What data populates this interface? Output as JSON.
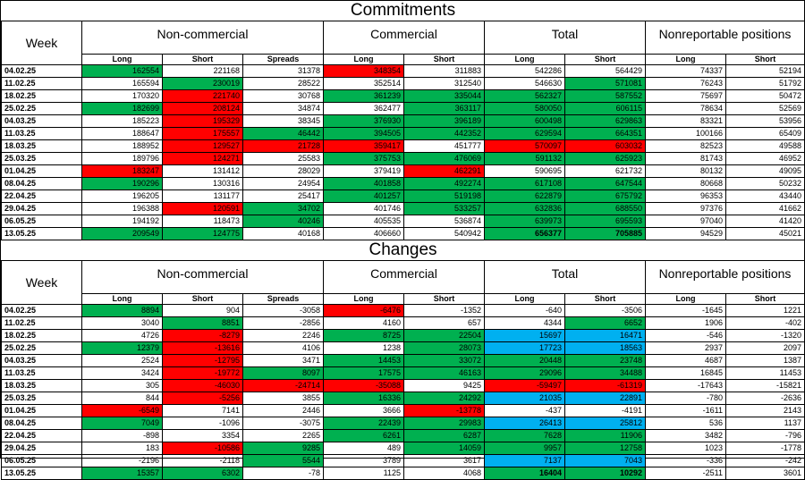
{
  "section_titles": {
    "commitments": "Commitments",
    "changes": "Changes"
  },
  "headers": {
    "week": "Week",
    "groups": [
      "Non-commercial",
      "Commercial",
      "Total",
      "Nonreportable positions"
    ],
    "subs": [
      "Long",
      "Short",
      "Spreads",
      "Long",
      "Short",
      "Long",
      "Short",
      "Long",
      "Short"
    ]
  },
  "colors": {
    "green": "#00b050",
    "red": "#ff0000",
    "blue": "#00b0f0"
  },
  "commitments": [
    {
      "week": "04.02.25",
      "v": [
        "162554",
        "221168",
        "31378",
        "348354",
        "311883",
        "542286",
        "564429",
        "74337",
        "52194"
      ],
      "c": [
        "g",
        "",
        "",
        "r",
        "",
        "",
        "",
        "",
        ""
      ]
    },
    {
      "week": "11.02.25",
      "v": [
        "165594",
        "230019",
        "28522",
        "352514",
        "312540",
        "546630",
        "571081",
        "76243",
        "51792"
      ],
      "c": [
        "",
        "g",
        "",
        "",
        "",
        "",
        "g",
        "",
        ""
      ]
    },
    {
      "week": "18.02.25",
      "v": [
        "170320",
        "221740",
        "30768",
        "361239",
        "335044",
        "562327",
        "587552",
        "75697",
        "50472"
      ],
      "c": [
        "",
        "r",
        "",
        "g",
        "g",
        "g",
        "g",
        "",
        ""
      ]
    },
    {
      "week": "25.02.25",
      "v": [
        "182699",
        "208124",
        "34874",
        "362477",
        "363117",
        "580050",
        "606115",
        "78634",
        "52569"
      ],
      "c": [
        "g",
        "r",
        "",
        "",
        "g",
        "g",
        "g",
        "",
        ""
      ]
    },
    {
      "week": "04.03.25",
      "v": [
        "185223",
        "195329",
        "38345",
        "376930",
        "396189",
        "600498",
        "629863",
        "83321",
        "53956"
      ],
      "c": [
        "",
        "r",
        "",
        "g",
        "g",
        "g",
        "g",
        "",
        ""
      ]
    },
    {
      "week": "11.03.25",
      "v": [
        "188647",
        "175557",
        "46442",
        "394505",
        "442352",
        "629594",
        "664351",
        "100166",
        "65409"
      ],
      "c": [
        "",
        "r",
        "g",
        "g",
        "g",
        "g",
        "g",
        "",
        ""
      ]
    },
    {
      "week": "18.03.25",
      "v": [
        "188952",
        "129527",
        "21728",
        "359417",
        "451777",
        "570097",
        "603032",
        "82523",
        "49588"
      ],
      "c": [
        "",
        "r",
        "r",
        "r",
        "",
        "r",
        "r",
        "",
        ""
      ]
    },
    {
      "week": "25.03.25",
      "v": [
        "189796",
        "124271",
        "25583",
        "375753",
        "476069",
        "591132",
        "625923",
        "81743",
        "46952"
      ],
      "c": [
        "",
        "r",
        "",
        "g",
        "g",
        "g",
        "g",
        "",
        ""
      ]
    },
    {
      "week": "01.04.25",
      "v": [
        "183247",
        "131412",
        "28029",
        "379419",
        "462291",
        "590695",
        "621732",
        "80132",
        "49095"
      ],
      "c": [
        "r",
        "",
        "",
        "",
        "r",
        "",
        "",
        "",
        ""
      ]
    },
    {
      "week": "08.04.25",
      "v": [
        "190296",
        "130316",
        "24954",
        "401858",
        "492274",
        "617108",
        "647544",
        "80668",
        "50232"
      ],
      "c": [
        "g",
        "",
        "",
        "g",
        "g",
        "g",
        "g",
        "",
        ""
      ]
    },
    {
      "week": "22.04.25",
      "v": [
        "196205",
        "131177",
        "25417",
        "401257",
        "519198",
        "622879",
        "675792",
        "96353",
        "43440"
      ],
      "c": [
        "",
        "",
        "",
        "g",
        "g",
        "g",
        "g",
        "",
        ""
      ]
    },
    {
      "week": "29.04.25",
      "v": [
        "196388",
        "120591",
        "34702",
        "401746",
        "533257",
        "632836",
        "688550",
        "97376",
        "41662"
      ],
      "c": [
        "",
        "r",
        "g",
        "",
        "g",
        "g",
        "g",
        "",
        ""
      ]
    },
    {
      "week": "06.05.25",
      "v": [
        "194192",
        "118473",
        "40246",
        "405535",
        "536874",
        "639973",
        "695593",
        "97040",
        "41420"
      ],
      "c": [
        "",
        "",
        "g",
        "",
        "",
        "g",
        "g",
        "",
        ""
      ]
    },
    {
      "week": "13.05.25",
      "v": [
        "209549",
        "124775",
        "40168",
        "406660",
        "540942",
        "656377",
        "705885",
        "94529",
        "45021"
      ],
      "c": [
        "g",
        "g",
        "",
        "",
        "",
        "g",
        "g",
        "",
        ""
      ]
    }
  ],
  "changes": [
    {
      "week": "04.02.25",
      "v": [
        "8894",
        "904",
        "-3058",
        "-6476",
        "-1352",
        "-640",
        "-3506",
        "-1645",
        "1221"
      ],
      "c": [
        "g",
        "",
        "",
        "r",
        "",
        "",
        "",
        "",
        ""
      ]
    },
    {
      "week": "11.02.25",
      "v": [
        "3040",
        "8851",
        "-2856",
        "4160",
        "657",
        "4344",
        "6652",
        "1906",
        "-402"
      ],
      "c": [
        "",
        "g",
        "",
        "",
        "",
        "",
        "g",
        "",
        ""
      ]
    },
    {
      "week": "18.02.25",
      "v": [
        "4726",
        "-8279",
        "2246",
        "8725",
        "22504",
        "15697",
        "16471",
        "-546",
        "-1320"
      ],
      "c": [
        "",
        "r",
        "",
        "g",
        "g",
        "b",
        "b",
        "",
        ""
      ]
    },
    {
      "week": "25.02.25",
      "v": [
        "12379",
        "-13616",
        "4106",
        "1238",
        "28073",
        "17723",
        "18563",
        "2937",
        "2097"
      ],
      "c": [
        "g",
        "r",
        "",
        "",
        "g",
        "b",
        "b",
        "",
        ""
      ]
    },
    {
      "week": "04.03.25",
      "v": [
        "2524",
        "-12795",
        "3471",
        "14453",
        "33072",
        "20448",
        "23748",
        "4687",
        "1387"
      ],
      "c": [
        "",
        "r",
        "",
        "g",
        "g",
        "g",
        "g",
        "",
        ""
      ]
    },
    {
      "week": "11.03.25",
      "v": [
        "3424",
        "-19772",
        "8097",
        "17575",
        "46163",
        "29096",
        "34488",
        "16845",
        "11453"
      ],
      "c": [
        "",
        "r",
        "g",
        "g",
        "g",
        "g",
        "g",
        "",
        ""
      ]
    },
    {
      "week": "18.03.25",
      "v": [
        "305",
        "-46030",
        "-24714",
        "-35088",
        "9425",
        "-59497",
        "-61319",
        "-17643",
        "-15821"
      ],
      "c": [
        "",
        "r",
        "r",
        "r",
        "",
        "r",
        "r",
        "",
        ""
      ]
    },
    {
      "week": "25.03.25",
      "v": [
        "844",
        "-5256",
        "3855",
        "16336",
        "24292",
        "21035",
        "22891",
        "-780",
        "-2636"
      ],
      "c": [
        "",
        "r",
        "",
        "g",
        "g",
        "b",
        "b",
        "",
        ""
      ]
    },
    {
      "week": "01.04.25",
      "v": [
        "-6549",
        "7141",
        "2446",
        "3666",
        "-13778",
        "-437",
        "-4191",
        "-1611",
        "2143"
      ],
      "c": [
        "r",
        "",
        "",
        "",
        "r",
        "",
        "",
        "",
        ""
      ]
    },
    {
      "week": "08.04.25",
      "v": [
        "7049",
        "-1096",
        "-3075",
        "22439",
        "29983",
        "26413",
        "25812",
        "536",
        "1137"
      ],
      "c": [
        "g",
        "",
        "",
        "g",
        "g",
        "b",
        "b",
        "",
        ""
      ]
    },
    {
      "week": "22.04.25",
      "v": [
        "-898",
        "3354",
        "2265",
        "6261",
        "6287",
        "7628",
        "11906",
        "3482",
        "-796"
      ],
      "c": [
        "",
        "",
        "",
        "g",
        "g",
        "g",
        "g",
        "",
        ""
      ]
    },
    {
      "week": "29.04.25",
      "v": [
        "183",
        "-10586",
        "9285",
        "489",
        "14059",
        "9957",
        "12758",
        "1023",
        "-1778"
      ],
      "c": [
        "",
        "r",
        "g",
        "",
        "g",
        "g",
        "g",
        "",
        ""
      ]
    },
    {
      "week": "06.05.25",
      "v": [
        "-2196",
        "-2118",
        "5544",
        "3789",
        "3617",
        "7137",
        "7043",
        "-336",
        "-242"
      ],
      "c": [
        "",
        "",
        "g",
        "",
        "",
        "b",
        "b",
        "",
        ""
      ]
    },
    {
      "week": "13.05.25",
      "v": [
        "15357",
        "6302",
        "-78",
        "1125",
        "4068",
        "16404",
        "10292",
        "-2511",
        "3601"
      ],
      "c": [
        "g",
        "g",
        "",
        "",
        "",
        "g",
        "g",
        "",
        ""
      ]
    }
  ]
}
